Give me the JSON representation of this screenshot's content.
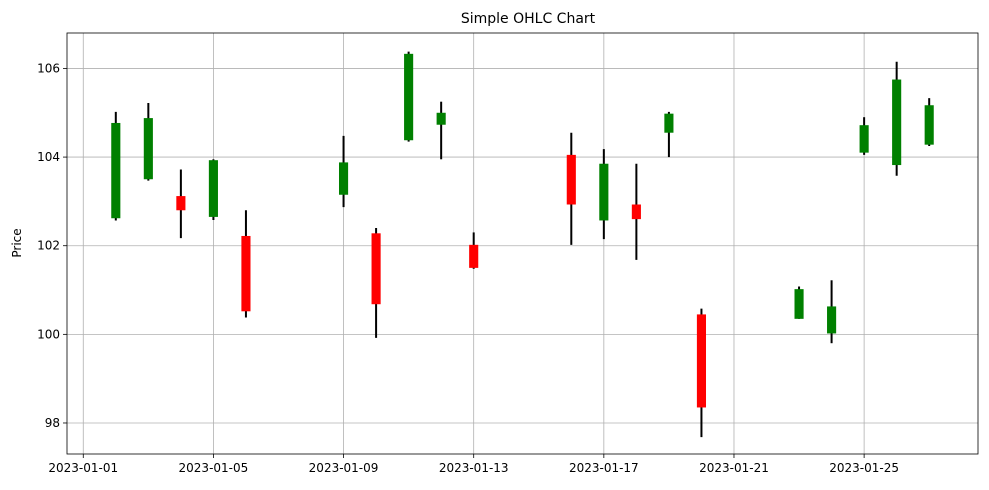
{
  "chart_data": {
    "type": "ohlc",
    "title": "Simple OHLC Chart",
    "xlabel": "",
    "ylabel": "Price",
    "xlim": [
      "2022-12-31T12:00",
      "2023-01-28T12:00"
    ],
    "ylim": [
      97.3,
      106.8
    ],
    "grid": true,
    "up_color": "#008000",
    "down_color": "#ff0000",
    "wick_color": "#000000",
    "x_ticks": [
      "2023-01-01",
      "2023-01-05",
      "2023-01-09",
      "2023-01-13",
      "2023-01-17",
      "2023-01-21",
      "2023-01-25"
    ],
    "y_ticks": [
      "98",
      "100",
      "102",
      "104",
      "106"
    ],
    "data": [
      {
        "date": "2023-01-02",
        "open": 102.62,
        "high": 105.02,
        "low": 102.57,
        "close": 104.77
      },
      {
        "date": "2023-01-03",
        "open": 103.5,
        "high": 105.22,
        "low": 103.47,
        "close": 104.88
      },
      {
        "date": "2023-01-04",
        "open": 103.12,
        "high": 103.72,
        "low": 102.17,
        "close": 102.8
      },
      {
        "date": "2023-01-05",
        "open": 102.65,
        "high": 103.95,
        "low": 102.58,
        "close": 103.93
      },
      {
        "date": "2023-01-06",
        "open": 102.22,
        "high": 102.8,
        "low": 100.38,
        "close": 100.52
      },
      {
        "date": "2023-01-09",
        "open": 103.15,
        "high": 104.48,
        "low": 102.87,
        "close": 103.88
      },
      {
        "date": "2023-01-10",
        "open": 102.28,
        "high": 102.4,
        "low": 99.92,
        "close": 100.68
      },
      {
        "date": "2023-01-11",
        "open": 104.38,
        "high": 106.38,
        "low": 104.35,
        "close": 106.33
      },
      {
        "date": "2023-01-12",
        "open": 104.73,
        "high": 105.25,
        "low": 103.95,
        "close": 105.0
      },
      {
        "date": "2023-01-13",
        "open": 102.02,
        "high": 102.3,
        "low": 101.48,
        "close": 101.5
      },
      {
        "date": "2023-01-16",
        "open": 104.05,
        "high": 104.55,
        "low": 102.02,
        "close": 102.93
      },
      {
        "date": "2023-01-17",
        "open": 102.57,
        "high": 104.18,
        "low": 102.15,
        "close": 103.85
      },
      {
        "date": "2023-01-18",
        "open": 102.93,
        "high": 103.85,
        "low": 101.68,
        "close": 102.6
      },
      {
        "date": "2023-01-19",
        "open": 104.55,
        "high": 105.02,
        "low": 104.0,
        "close": 104.98
      },
      {
        "date": "2023-01-20",
        "open": 100.45,
        "high": 100.58,
        "low": 97.68,
        "close": 98.35
      },
      {
        "date": "2023-01-23",
        "open": 100.35,
        "high": 101.08,
        "low": 100.35,
        "close": 101.02
      },
      {
        "date": "2023-01-24",
        "open": 100.02,
        "high": 101.22,
        "low": 99.8,
        "close": 100.63
      },
      {
        "date": "2023-01-25",
        "open": 104.1,
        "high": 104.9,
        "low": 104.05,
        "close": 104.72
      },
      {
        "date": "2023-01-26",
        "open": 103.82,
        "high": 106.15,
        "low": 103.58,
        "close": 105.75
      },
      {
        "date": "2023-01-27",
        "open": 104.28,
        "high": 105.33,
        "low": 104.25,
        "close": 105.17
      }
    ]
  }
}
